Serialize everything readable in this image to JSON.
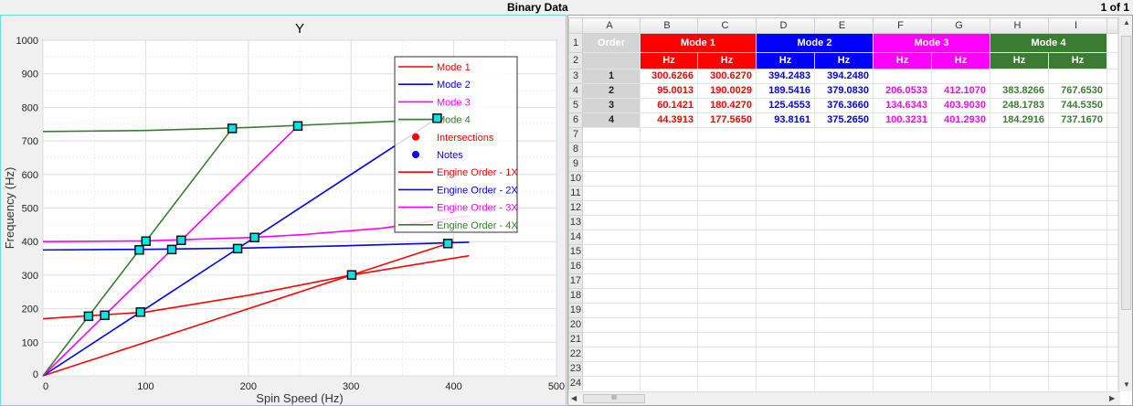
{
  "window": {
    "title": "Binary Data",
    "pager": "1 of 1"
  },
  "chart_data": {
    "type": "line",
    "title": "Y",
    "xlabel": "Spin Speed (Hz)",
    "ylabel": "Frequency (Hz)",
    "xlim": [
      0,
      500
    ],
    "ylim": [
      0,
      1000
    ],
    "xticks": [
      0,
      100,
      200,
      300,
      400,
      500
    ],
    "yticks": [
      0,
      100,
      200,
      300,
      400,
      500,
      600,
      700,
      800,
      900,
      1000
    ],
    "grid": true,
    "legend_placement": "top-right",
    "series": [
      {
        "name": "Mode 1",
        "color": "#ff0000",
        "x": [
          0,
          100,
          200,
          300,
          415
        ],
        "y": [
          170,
          190,
          240,
          300,
          358
        ]
      },
      {
        "name": "Mode 2",
        "color": "#0000ff",
        "x": [
          0,
          100,
          200,
          300,
          415
        ],
        "y": [
          375,
          377,
          381,
          388,
          398
        ]
      },
      {
        "name": "Mode 3",
        "color": "#ff00ff",
        "x": [
          0,
          100,
          200,
          250,
          330,
          415
        ],
        "y": [
          400,
          402,
          412,
          420,
          440,
          477
        ]
      },
      {
        "name": "Mode 4",
        "color": "#3a7d32",
        "x": [
          0,
          100,
          200,
          300,
          415
        ],
        "y": [
          728,
          731,
          740,
          753,
          768
        ]
      },
      {
        "name": "Engine Order - 1X",
        "color": "#ff0000",
        "x": [
          0,
          400
        ],
        "y": [
          0,
          400
        ]
      },
      {
        "name": "Engine Order - 2X",
        "color": "#0000ff",
        "x": [
          0,
          383.8
        ],
        "y": [
          0,
          767.6
        ]
      },
      {
        "name": "Engine Order - 3X",
        "color": "#ff00ff",
        "x": [
          0,
          248.2
        ],
        "y": [
          0,
          744.5
        ]
      },
      {
        "name": "Engine Order - 4X",
        "color": "#3a7d32",
        "x": [
          0,
          184.3
        ],
        "y": [
          0,
          737.2
        ]
      }
    ],
    "legend": [
      {
        "label": "Mode 1",
        "color": "#ff0000",
        "kind": "line"
      },
      {
        "label": "Mode 2",
        "color": "#0000ff",
        "kind": "line"
      },
      {
        "label": "Mode 3",
        "color": "#ff00ff",
        "kind": "line"
      },
      {
        "label": "Mode 4",
        "color": "#3a7d32",
        "kind": "line"
      },
      {
        "label": "Intersections",
        "color": "#ff0000",
        "kind": "dot"
      },
      {
        "label": "Notes",
        "color": "#0000ff",
        "kind": "dot"
      },
      {
        "label": "Engine Order - 1X",
        "color": "#ff0000",
        "kind": "line"
      },
      {
        "label": "Engine Order - 2X",
        "color": "#0000ff",
        "kind": "line"
      },
      {
        "label": "Engine Order - 3X",
        "color": "#ff00ff",
        "kind": "line"
      },
      {
        "label": "Engine Order - 4X",
        "color": "#3a7d32",
        "kind": "line"
      }
    ],
    "intersections": [
      [
        44.3913,
        177.565
      ],
      [
        60.1421,
        180.427
      ],
      [
        95.0013,
        190.0029
      ],
      [
        300.6266,
        300.627
      ],
      [
        93.8161,
        375.265
      ],
      [
        125.4553,
        376.366
      ],
      [
        189.5416,
        379.083
      ],
      [
        394.2483,
        394.248
      ],
      [
        100.3231,
        401.293
      ],
      [
        134.6343,
        403.903
      ],
      [
        206.0533,
        412.107
      ],
      [
        184.2916,
        737.167
      ],
      [
        248.1783,
        744.535
      ],
      [
        383.8266,
        767.653
      ]
    ],
    "marker_color": "#00e5e5"
  },
  "sheet": {
    "columns": [
      "A",
      "B",
      "C",
      "D",
      "E",
      "F",
      "G",
      "H",
      "I"
    ],
    "order_label": "Order",
    "modes": [
      {
        "label": "Mode 1",
        "color": "#ff0000"
      },
      {
        "label": "Mode 2",
        "color": "#0000ff"
      },
      {
        "label": "Mode 3",
        "color": "#ff00ff"
      },
      {
        "label": "Mode 4",
        "color": "#3a7d32"
      }
    ],
    "unit": "Hz",
    "rows": [
      [
        "1",
        "300.6266",
        "300.6270",
        "394.2483",
        "394.2480",
        "",
        "",
        "",
        ""
      ],
      [
        "2",
        "95.0013",
        "190.0029",
        "189.5416",
        "379.0830",
        "206.0533",
        "412.1070",
        "383.8266",
        "767.6530"
      ],
      [
        "3",
        "60.1421",
        "180.4270",
        "125.4553",
        "376.3660",
        "134.6343",
        "403.9030",
        "248.1783",
        "744.5350"
      ],
      [
        "4",
        "44.3913",
        "177.5650",
        "93.8161",
        "375.2650",
        "100.3231",
        "401.2930",
        "184.2916",
        "737.1670"
      ]
    ],
    "row_count": 24,
    "hscroll_thumb": "III"
  }
}
